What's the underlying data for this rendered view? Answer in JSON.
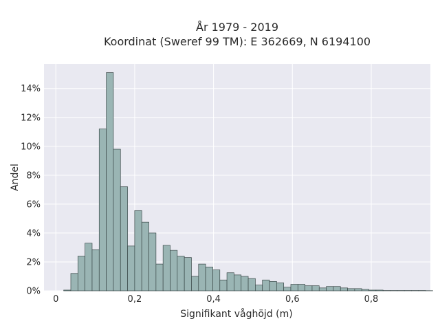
{
  "chart_data": {
    "type": "bar",
    "title_line1": "År 1979 - 2019",
    "title_line2": "Koordinat (Sweref 99 TM): E 362669, N 6194100",
    "xlabel": "Signifikant våghöjd (m)",
    "ylabel": "Andel",
    "xlim": [
      -0.03,
      0.95
    ],
    "ylim": [
      0,
      15.7
    ],
    "x_ticks": [
      0,
      0.2,
      0.4,
      0.6,
      0.8
    ],
    "x_tick_labels": [
      "0",
      "0,2",
      "0,4",
      "0,6",
      "0,8"
    ],
    "y_ticks": [
      0,
      2,
      4,
      6,
      8,
      10,
      12,
      14
    ],
    "y_tick_labels": [
      "0%",
      "2%",
      "4%",
      "6%",
      "8%",
      "10%",
      "12%",
      "14%"
    ],
    "bin_width": 0.018,
    "bin_start": 0.02,
    "values": [
      0.05,
      1.2,
      2.4,
      3.3,
      2.85,
      11.2,
      15.1,
      9.8,
      7.2,
      3.1,
      5.55,
      4.75,
      4.0,
      1.85,
      3.15,
      2.8,
      2.4,
      2.3,
      1.0,
      1.85,
      1.65,
      1.45,
      0.75,
      1.25,
      1.1,
      1.0,
      0.85,
      0.4,
      0.75,
      0.65,
      0.55,
      0.25,
      0.45,
      0.45,
      0.35,
      0.35,
      0.2,
      0.3,
      0.3,
      0.2,
      0.15,
      0.15,
      0.1,
      0.05,
      0.05,
      0.02,
      0.02,
      0.02,
      0.02,
      0.02,
      0.02,
      0.01
    ],
    "grid": true,
    "colors": {
      "plot_bg": "#e9e9f1",
      "bar_fill": "#9ab5b4",
      "bar_stroke": "#3a4848",
      "grid": "#ffffff"
    }
  }
}
